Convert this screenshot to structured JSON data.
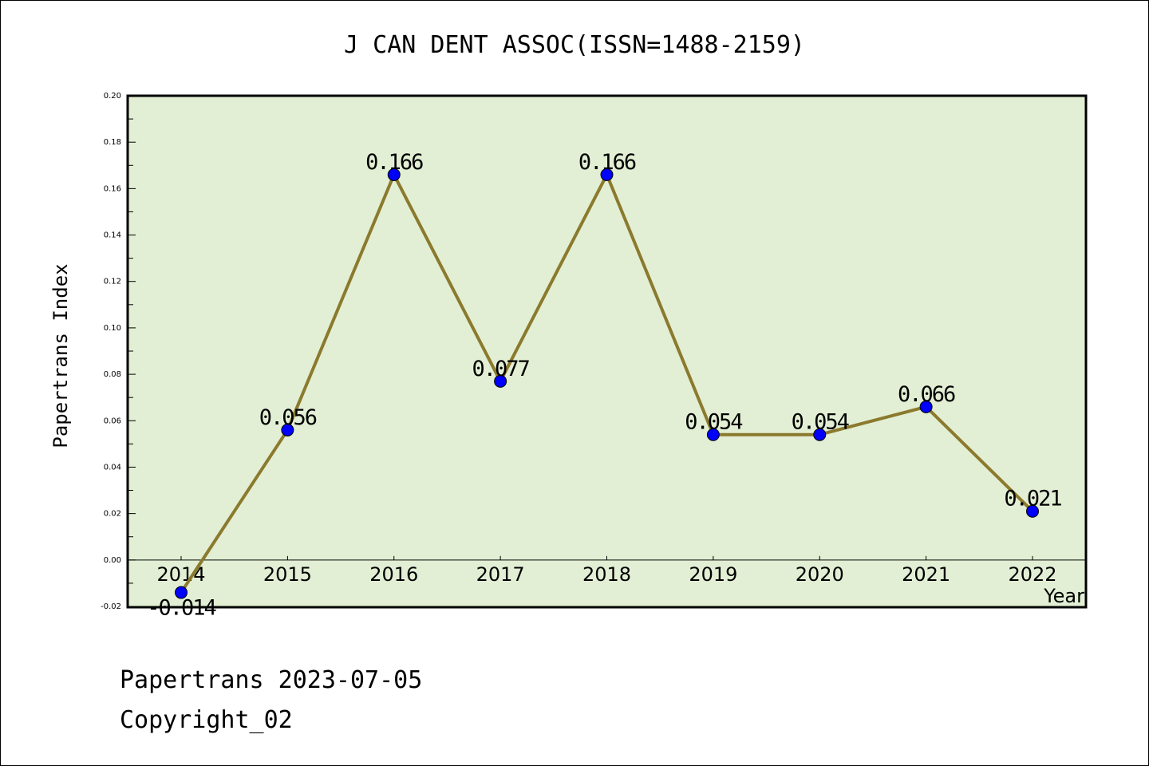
{
  "chart_data": {
    "type": "line",
    "title": "J CAN DENT ASSOC(ISSN=1488-2159)",
    "xlabel": "Year",
    "ylabel": "Papertrans Index",
    "categories": [
      "2014",
      "2015",
      "2016",
      "2017",
      "2018",
      "2019",
      "2020",
      "2021",
      "2022"
    ],
    "series": [
      {
        "name": "Papertrans Index",
        "values": [
          -0.014,
          0.056,
          0.166,
          0.077,
          0.166,
          0.054,
          0.054,
          0.066,
          0.021
        ],
        "labels": [
          "-0.014",
          "0.056",
          "0.166",
          "0.077",
          "0.166",
          "0.054",
          "0.054",
          "0.066",
          "0.021"
        ]
      }
    ],
    "ylim": [
      -0.02,
      0.2
    ],
    "yticks": [
      "-0.02",
      "0.00",
      "0.02",
      "0.04",
      "0.06",
      "0.08",
      "0.10",
      "0.12",
      "0.14",
      "0.16",
      "0.18",
      "0.20"
    ],
    "grid": false,
    "colors": {
      "background": "#e2efd4",
      "line": "#8b7a2e",
      "marker": "#0000ff"
    }
  },
  "footer": {
    "line1": "Papertrans 2023-07-05",
    "line2": "Copyright_02"
  }
}
